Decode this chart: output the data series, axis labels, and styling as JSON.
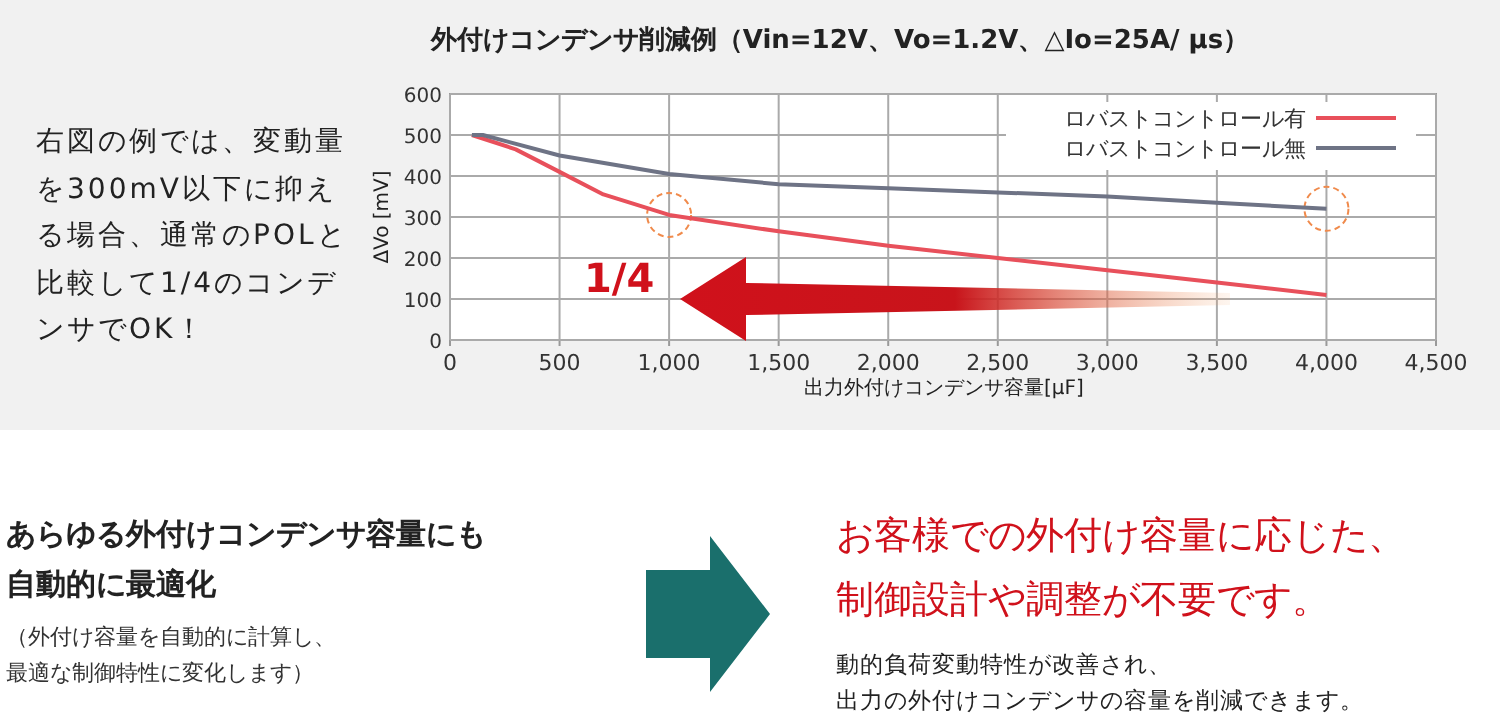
{
  "chart_data": {
    "type": "line",
    "title": "外付けコンデンサ削減例（Vin=12V、Vo=1.2V、△Io=25A/ μs）",
    "xlabel": "出力外付けコンデンサ容量[μF]",
    "ylabel": "ΔVo [mV]",
    "series": [
      {
        "name": "ロバストコントロール有",
        "color": "#e8505b",
        "x": [
          100,
          300,
          500,
          700,
          1000,
          1500,
          2000,
          2500,
          3000,
          3500,
          4000
        ],
        "values": [
          500,
          465,
          410,
          355,
          305,
          265,
          230,
          200,
          170,
          140,
          110
        ]
      },
      {
        "name": "ロバストコントロール無",
        "color": "#6e7385",
        "x": [
          100,
          150,
          500,
          1000,
          1500,
          2000,
          2500,
          3000,
          3500,
          4000
        ],
        "values": [
          500,
          500,
          450,
          405,
          380,
          370,
          360,
          350,
          335,
          320
        ]
      }
    ],
    "xlim": [
      0,
      4500
    ],
    "ylim": [
      0,
      600
    ],
    "xticks": [
      0,
      500,
      {
        "value": 1000,
        "label": "1,000"
      },
      {
        "value": 1500,
        "label": "1,500"
      },
      {
        "value": 2000,
        "label": "2,000"
      },
      {
        "value": 2500,
        "label": "2,500"
      },
      {
        "value": 3000,
        "label": "3,000"
      },
      {
        "value": 3500,
        "label": "3,500"
      },
      {
        "value": 4000,
        "label": "4,000"
      },
      {
        "value": 4500,
        "label": "4,500"
      }
    ],
    "yticks": [
      0,
      100,
      200,
      300,
      400,
      500,
      600
    ],
    "grid": true,
    "legend": "top right",
    "marker": "none",
    "line_style": "solid",
    "annotations": [
      "1/4",
      "右図の例では、変動量を300mV以下に抑える場合、通常のPOLと比較して1/4のコンデンサでOK！",
      "あらゆる外付けコンデンサ容量にも自動的に最適化",
      "（外付け容量を自動的に計算し、最適な制御特性に変化します）",
      "お客様での外付け容量に応じた、制御設計や調整が不要です。",
      "動的負荷変動特性が改善され、出力の外付けコンデンサの容量を削減できます。"
    ]
  }
}
